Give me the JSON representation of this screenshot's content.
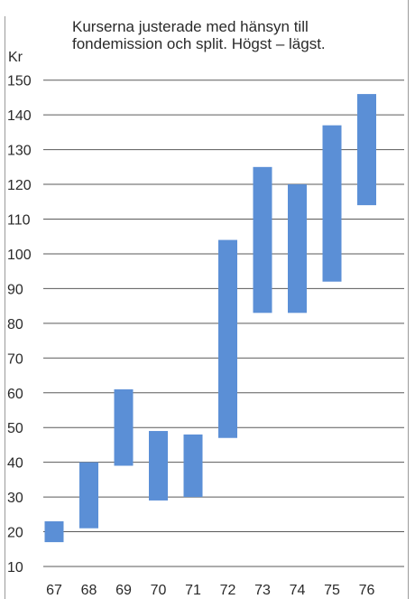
{
  "chart_data": {
    "type": "bar",
    "subtype": "floating-range",
    "title": "Kurserna justerade med hänsyn till fondemission och split. Högst – lägst.",
    "title_lines": [
      "Kurserna justerade med hänsyn till",
      "fondemission och split. Högst – lägst."
    ],
    "ylabel": "Kr",
    "xlabel": "",
    "ylim": [
      6,
      152
    ],
    "y_ticks": [
      10,
      20,
      30,
      40,
      50,
      60,
      70,
      80,
      90,
      100,
      110,
      120,
      130,
      140,
      150
    ],
    "grid": true,
    "categories": [
      "67",
      "68",
      "69",
      "70",
      "71",
      "72",
      "73",
      "74",
      "75",
      "76"
    ],
    "series": [
      {
        "high": [
          23,
          40,
          61,
          49,
          48,
          104,
          125,
          120,
          137,
          146
        ],
        "low": [
          17,
          21,
          39,
          29,
          30,
          47,
          83,
          83,
          92,
          114
        ]
      }
    ],
    "colors": {
      "bar": "#5b8fd6",
      "grid": "#5a5a5a",
      "text": "#2a2a2a"
    }
  }
}
